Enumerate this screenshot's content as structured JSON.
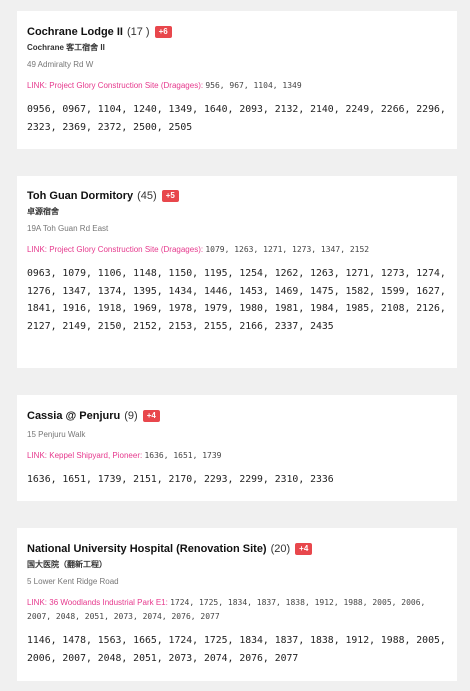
{
  "cards": [
    {
      "name": "Cochrane Lodge II",
      "count": "(17 )",
      "badge": "+6",
      "subname": "Cochrane 客工宿舍 II",
      "address": "49 Admiralty Rd W",
      "link_label": "LINK:",
      "link_text": "Project Glory Construction Site (Dragages):",
      "link_cases": "956, 967, 1104, 1349",
      "cases": "0956, 0967, 1104, 1240, 1349, 1640, 2093, 2132, 2140, 2249, 2266, 2296, 2323, 2369, 2372, 2500, 2505"
    },
    {
      "name": "Toh Guan Dormitory",
      "count": "(45)",
      "badge": "+5",
      "subname": "卓源宿舍",
      "address": "19A Toh Guan Rd East",
      "link_label": "LINK:",
      "link_text": "Project Glory Construction Site (Dragages):",
      "link_cases": "1079, 1263, 1271, 1273, 1347, 2152",
      "cases": "0963, 1079, 1106, 1148, 1150, 1195, 1254, 1262, 1263, 1271, 1273, 1274, 1276, 1347, 1374, 1395, 1434, 1446, 1453, 1469, 1475, 1582, 1599, 1627, 1841, 1916, 1918, 1969, 1978, 1979, 1980, 1981, 1984, 1985, 2108, 2126, 2127, 2149, 2150, 2152, 2153, 2155, 2166, 2337, 2435"
    },
    {
      "name": "Cassia @ Penjuru",
      "count": "(9)",
      "badge": "+4",
      "subname": "",
      "address": "15 Penjuru Walk",
      "link_label": "LINK:",
      "link_text": "Keppel Shipyard, Pioneer:",
      "link_cases": "1636, 1651, 1739",
      "cases": "1636, 1651, 1739, 2151, 2170, 2293, 2299, 2310, 2336"
    },
    {
      "name": "National University Hospital (Renovation Site)",
      "count": "(20)",
      "badge": "+4",
      "subname": "国大医院（翻新工程）",
      "address": "5 Lower Kent Ridge Road",
      "link_label": "LINK:",
      "link_text": "36 Woodlands Industrial Park E1:",
      "link_cases": "1724, 1725, 1834, 1837, 1838, 1912, 1988, 2005, 2006, 2007, 2048, 2051, 2073, 2074, 2076, 2077",
      "cases": "1146, 1478, 1563, 1665, 1724, 1725, 1834, 1837, 1838, 1912, 1988, 2005, 2006, 2007, 2048, 2051, 2073, 2074, 2076, 2077"
    }
  ]
}
